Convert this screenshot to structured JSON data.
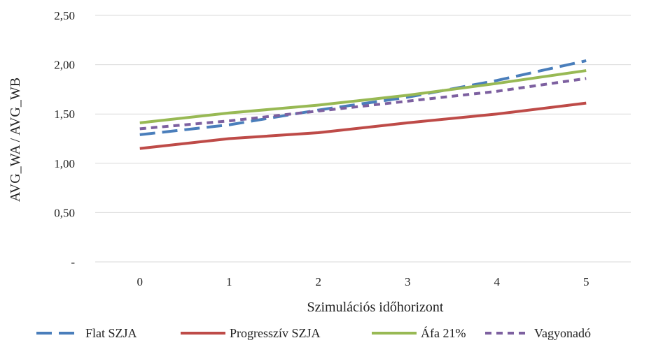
{
  "chart_data": {
    "type": "line",
    "title": "",
    "xlabel": "Szimulációs időhorizont",
    "ylabel": "AVG_WA / AVG_WB",
    "x": [
      0,
      1,
      2,
      3,
      4,
      5
    ],
    "ylim": [
      0,
      2.5
    ],
    "yticks": [
      0,
      0.5,
      1.0,
      1.5,
      2.0,
      2.5
    ],
    "ytick_labels": [
      "-",
      "0,50",
      "1,00",
      "1,50",
      "2,00",
      "2,50"
    ],
    "xtick_labels": [
      "0",
      "1",
      "2",
      "3",
      "4",
      "5"
    ],
    "grid": "horizontal",
    "legend_position": "bottom",
    "series": [
      {
        "name": "Flat SZJA",
        "values": [
          1.29,
          1.39,
          1.54,
          1.67,
          1.84,
          2.04
        ],
        "color": "#4a7ebb",
        "style": "long-dash"
      },
      {
        "name": "Progresszív SZJA",
        "values": [
          1.15,
          1.25,
          1.31,
          1.41,
          1.5,
          1.61
        ],
        "color": "#be4b48",
        "style": "solid"
      },
      {
        "name": "Áfa 21%",
        "values": [
          1.41,
          1.51,
          1.59,
          1.69,
          1.81,
          1.94
        ],
        "color": "#98b954",
        "style": "solid"
      },
      {
        "name": "Vagyonadó",
        "values": [
          1.35,
          1.43,
          1.53,
          1.63,
          1.73,
          1.86
        ],
        "color": "#7d60a0",
        "style": "short-dash"
      }
    ]
  }
}
